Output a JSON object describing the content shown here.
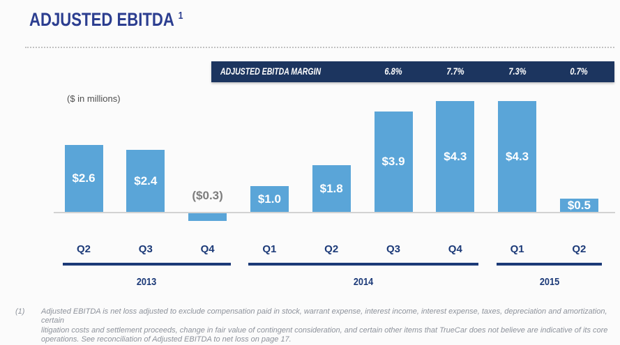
{
  "slide": {
    "title": "ADJUSTED EBITDA",
    "title_superscript": "1",
    "units_label": "($ in millions)",
    "footnote_marker": "(1)",
    "footnote_lines": [
      "Adjusted EBITDA is net loss adjusted to exclude compensation paid in stock, warrant expense, interest income, interest expense, taxes, depreciation and amortization, certain",
      "litigation costs and settlement proceeds, change in fair value of contingent consideration, and certain other items that TrueCar does not believe are indicative of its core",
      "operations. See reconciliation of Adjusted EBITDA to net loss on page 17."
    ],
    "footnote_text": "Adjusted EBITDA is net loss adjusted to exclude compensation paid in stock, warrant expense, interest income, interest expense, taxes, depreciation and amortization, certain litigation costs and settlement proceeds, change in fair value of contingent consideration, and certain other items that TrueCar does not believe are indicative of its core operations. See reconciliation of Adjusted EBITDA to net loss on page 17."
  },
  "margin_banner": {
    "label": "ADJUSTED EBITDA MARGIN",
    "background": "#1c355f",
    "text_color": "#ffffff",
    "values": [
      {
        "text": "6.8%",
        "bar_index": 5
      },
      {
        "text": "7.7%",
        "bar_index": 6
      },
      {
        "text": "7.3%",
        "bar_index": 7
      },
      {
        "text": "0.7%",
        "bar_index": 8
      }
    ]
  },
  "chart_data": {
    "type": "bar",
    "title": "Adjusted EBITDA ($ in millions)",
    "categories": [
      "Q2",
      "Q3",
      "Q4",
      "Q1",
      "Q2",
      "Q3",
      "Q4",
      "Q1",
      "Q2"
    ],
    "values": [
      2.6,
      2.4,
      -0.3,
      1.0,
      1.8,
      3.9,
      4.3,
      4.3,
      0.5
    ],
    "labels": [
      "$2.6",
      "$2.4",
      "($0.3)",
      "$1.0",
      "$1.8",
      "$3.9",
      "$4.3",
      "$4.3",
      "$0.5"
    ],
    "groups": [
      {
        "year": "2013",
        "quarters": [
          "Q2",
          "Q3",
          "Q4"
        ]
      },
      {
        "year": "2014",
        "quarters": [
          "Q1",
          "Q2",
          "Q3",
          "Q4"
        ]
      },
      {
        "year": "2015",
        "quarters": [
          "Q1",
          "Q2"
        ]
      }
    ],
    "series": [
      {
        "name": "Adjusted EBITDA ($M)",
        "values": [
          2.6,
          2.4,
          -0.3,
          1.0,
          1.8,
          3.9,
          4.3,
          4.3,
          0.5
        ]
      },
      {
        "name": "Adjusted EBITDA margin (%)",
        "values": [
          null,
          null,
          null,
          null,
          null,
          6.8,
          7.7,
          7.3,
          0.7
        ]
      }
    ],
    "bar_color": "#5aa5d8",
    "axis_color": "#d2d2d2",
    "label_color_positive": "#ffffff",
    "label_color_negative": "#7d7d7d",
    "group_accent_color": "#1c3a78",
    "ylim": [
      -0.5,
      4.8
    ],
    "grid": false,
    "legend": "none"
  }
}
